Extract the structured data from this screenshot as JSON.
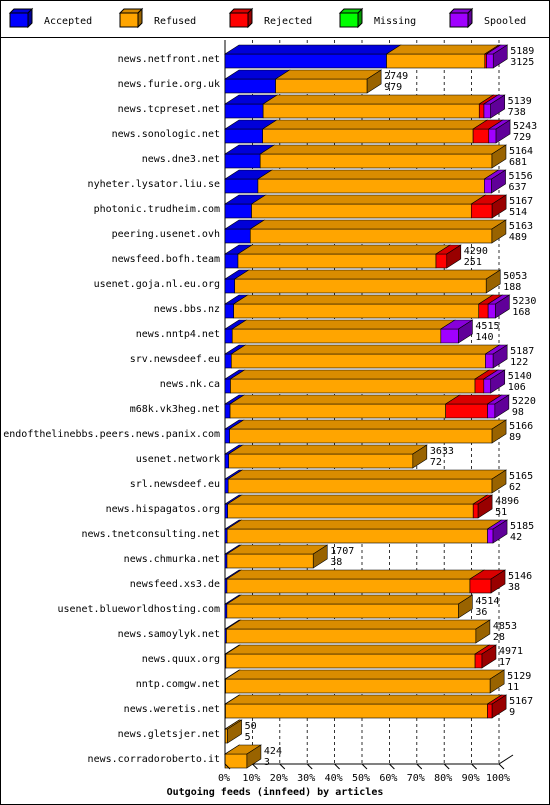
{
  "colors": {
    "accepted": "#0000ff",
    "refused": "#ffa500",
    "rejected": "#ff0000",
    "missing": "#00ff00",
    "spooled": "#a000ff"
  },
  "chart_data": {
    "type": "bar",
    "orientation": "horizontal",
    "stacked": true,
    "three_d": true,
    "title": "Outgoing feeds (innfeed) by articles",
    "xlabel": "",
    "ylabel": "",
    "x_tick_labels": [
      "0%",
      "10%",
      "20%",
      "30%",
      "40%",
      "50%",
      "60%",
      "70%",
      "80%",
      "90%",
      "100%"
    ],
    "xlim": [
      0,
      100
    ],
    "x_unit": "%",
    "grid": "vertical dashed",
    "legend_position": "top",
    "legend": [
      {
        "key": "accepted",
        "label": "Accepted"
      },
      {
        "key": "refused",
        "label": "Refused"
      },
      {
        "key": "rejected",
        "label": "Rejected"
      },
      {
        "key": "missing",
        "label": "Missing"
      },
      {
        "key": "spooled",
        "label": "Spooled"
      }
    ],
    "rows": [
      {
        "name": "news.netfront.net",
        "total": "5189",
        "accepted_label": "3125",
        "accepted": 3125,
        "refused": 1900,
        "rejected": 34,
        "missing": 0,
        "spooled": 130
      },
      {
        "name": "news.furie.org.uk",
        "total": "2749",
        "accepted_label": "979",
        "accepted": 979,
        "refused": 1770,
        "rejected": 0,
        "missing": 0,
        "spooled": 0
      },
      {
        "name": "news.tcpreset.net",
        "total": "5139",
        "accepted_label": "738",
        "accepted": 738,
        "refused": 4180,
        "rejected": 91,
        "missing": 0,
        "spooled": 130
      },
      {
        "name": "news.sonologic.net",
        "total": "5243",
        "accepted_label": "729",
        "accepted": 729,
        "refused": 4070,
        "rejected": 303,
        "missing": 0,
        "spooled": 141
      },
      {
        "name": "news.dne3.net",
        "total": "5164",
        "accepted_label": "681",
        "accepted": 681,
        "refused": 4483,
        "rejected": 0,
        "missing": 0,
        "spooled": 0
      },
      {
        "name": "nyheter.lysator.liu.se",
        "total": "5156",
        "accepted_label": "637",
        "accepted": 637,
        "refused": 4380,
        "rejected": 0,
        "missing": 0,
        "spooled": 139
      },
      {
        "name": "photonic.trudheim.com",
        "total": "5167",
        "accepted_label": "514",
        "accepted": 514,
        "refused": 4250,
        "rejected": 403,
        "missing": 0,
        "spooled": 0
      },
      {
        "name": "peering.usenet.ovh",
        "total": "5163",
        "accepted_label": "489",
        "accepted": 489,
        "refused": 4674,
        "rejected": 0,
        "missing": 0,
        "spooled": 0
      },
      {
        "name": "newsfeed.bofh.team",
        "total": "4290",
        "accepted_label": "251",
        "accepted": 251,
        "refused": 3830,
        "rejected": 209,
        "missing": 0,
        "spooled": 0
      },
      {
        "name": "usenet.goja.nl.eu.org",
        "total": "5053",
        "accepted_label": "188",
        "accepted": 188,
        "refused": 4865,
        "rejected": 0,
        "missing": 0,
        "spooled": 0
      },
      {
        "name": "news.bbs.nz",
        "total": "5230",
        "accepted_label": "168",
        "accepted": 168,
        "refused": 4740,
        "rejected": 182,
        "missing": 0,
        "spooled": 140
      },
      {
        "name": "news.nntp4.net",
        "total": "4515",
        "accepted_label": "140",
        "accepted": 140,
        "refused": 4035,
        "rejected": 0,
        "missing": 0,
        "spooled": 340
      },
      {
        "name": "srv.newsdeef.eu",
        "total": "5187",
        "accepted_label": "122",
        "accepted": 122,
        "refused": 4915,
        "rejected": 0,
        "missing": 0,
        "spooled": 150
      },
      {
        "name": "news.nk.ca",
        "total": "5140",
        "accepted_label": "106",
        "accepted": 106,
        "refused": 4730,
        "rejected": 170,
        "missing": 0,
        "spooled": 134
      },
      {
        "name": "m68k.vk3heg.net",
        "total": "5220",
        "accepted_label": "98",
        "accepted": 98,
        "refused": 4170,
        "rejected": 810,
        "missing": 0,
        "spooled": 142
      },
      {
        "name": "endofthelinebbs.peers.news.panix.com",
        "total": "5166",
        "accepted_label": "89",
        "accepted": 89,
        "refused": 5077,
        "rejected": 0,
        "missing": 0,
        "spooled": 0
      },
      {
        "name": "usenet.network",
        "total": "3633",
        "accepted_label": "72",
        "accepted": 72,
        "refused": 3561,
        "rejected": 0,
        "missing": 0,
        "spooled": 0
      },
      {
        "name": "srl.newsdeef.eu",
        "total": "5165",
        "accepted_label": "62",
        "accepted": 62,
        "refused": 5103,
        "rejected": 0,
        "missing": 0,
        "spooled": 0
      },
      {
        "name": "news.hispagatos.org",
        "total": "4896",
        "accepted_label": "51",
        "accepted": 51,
        "refused": 4750,
        "rejected": 95,
        "missing": 0,
        "spooled": 0
      },
      {
        "name": "news.tnetconsulting.net",
        "total": "5185",
        "accepted_label": "42",
        "accepted": 42,
        "refused": 5035,
        "rejected": 0,
        "missing": 0,
        "spooled": 108
      },
      {
        "name": "news.chmurka.net",
        "total": "1707",
        "accepted_label": "38",
        "accepted": 38,
        "refused": 1669,
        "rejected": 0,
        "missing": 0,
        "spooled": 0
      },
      {
        "name": "newsfeed.xs3.de",
        "total": "5146",
        "accepted_label": "38",
        "accepted": 38,
        "refused": 4700,
        "rejected": 408,
        "missing": 0,
        "spooled": 0
      },
      {
        "name": "usenet.blueworldhosting.com",
        "total": "4514",
        "accepted_label": "36",
        "accepted": 36,
        "refused": 4478,
        "rejected": 0,
        "missing": 0,
        "spooled": 0
      },
      {
        "name": "news.samoylyk.net",
        "total": "4853",
        "accepted_label": "28",
        "accepted": 28,
        "refused": 4825,
        "rejected": 0,
        "missing": 0,
        "spooled": 0
      },
      {
        "name": "news.quux.org",
        "total": "4971",
        "accepted_label": "17",
        "accepted": 17,
        "refused": 4820,
        "rejected": 134,
        "missing": 0,
        "spooled": 0
      },
      {
        "name": "nntp.comgw.net",
        "total": "5129",
        "accepted_label": "11",
        "accepted": 11,
        "refused": 5118,
        "rejected": 0,
        "missing": 0,
        "spooled": 0
      },
      {
        "name": "news.weretis.net",
        "total": "5167",
        "accepted_label": "9",
        "accepted": 9,
        "refused": 5068,
        "rejected": 90,
        "missing": 0,
        "spooled": 0
      },
      {
        "name": "news.gletsjer.net",
        "total": "50",
        "accepted_label": "5",
        "accepted": 5,
        "refused": 45,
        "rejected": 0,
        "missing": 0,
        "spooled": 0
      },
      {
        "name": "news.corradoroberto.it",
        "total": "424",
        "accepted_label": "3",
        "accepted": 3,
        "refused": 421,
        "rejected": 0,
        "missing": 0,
        "spooled": 0
      }
    ]
  }
}
